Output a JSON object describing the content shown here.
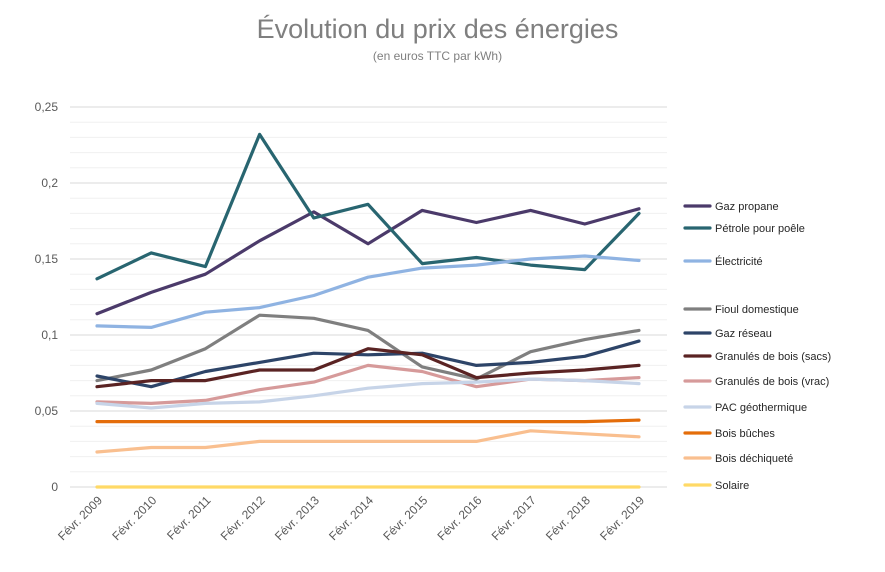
{
  "chart_data": {
    "type": "line",
    "title": "Évolution du prix des énergies",
    "subtitle": "(en euros TTC par kWh)",
    "xlabel": "",
    "ylabel": "",
    "ylim": [
      0,
      0.25
    ],
    "y_ticks": [
      "0",
      "0,05",
      "0,1",
      "0,15",
      "0,2",
      "0,25"
    ],
    "grid": true,
    "legend_position": "right",
    "categories": [
      "Févr. 2009",
      "Févr. 2010",
      "Févr. 2011",
      "Févr. 2012",
      "Févr. 2013",
      "Févr. 2014",
      "Févr. 2015",
      "Févr. 2016",
      "Févr. 2017",
      "Févr. 2018",
      "Févr. 2019"
    ],
    "series": [
      {
        "name": "Gaz propane",
        "color": "#4b3a6a",
        "values": [
          0.114,
          0.128,
          0.14,
          0.162,
          0.181,
          0.16,
          0.182,
          0.174,
          0.182,
          0.173,
          0.183
        ]
      },
      {
        "name": "Pétrole pour poêle",
        "color": "#286570",
        "values": [
          0.137,
          0.154,
          0.145,
          0.232,
          0.177,
          0.186,
          0.147,
          0.151,
          0.146,
          0.143,
          0.18
        ]
      },
      {
        "name": "Électricité",
        "color": "#8fb3e2",
        "values": [
          0.106,
          0.105,
          0.115,
          0.118,
          0.126,
          0.138,
          0.144,
          0.146,
          0.15,
          0.152,
          0.149
        ]
      },
      {
        "name": "Fioul domestique",
        "color": "#7f7f7f",
        "values": [
          0.07,
          0.077,
          0.091,
          0.113,
          0.111,
          0.103,
          0.079,
          0.071,
          0.089,
          0.097,
          0.103
        ]
      },
      {
        "name": "Gaz réseau",
        "color": "#2d4468",
        "values": [
          0.073,
          0.066,
          0.076,
          0.082,
          0.088,
          0.087,
          0.088,
          0.08,
          0.082,
          0.086,
          0.096
        ]
      },
      {
        "name": "Granulés de bois (sacs)",
        "color": "#5a2323",
        "values": [
          0.066,
          0.07,
          0.07,
          0.077,
          0.077,
          0.091,
          0.087,
          0.072,
          0.075,
          0.077,
          0.08
        ]
      },
      {
        "name": "Granulés de bois (vrac)",
        "color": "#d69a9a",
        "values": [
          0.056,
          0.055,
          0.057,
          0.064,
          0.069,
          0.08,
          0.076,
          0.066,
          0.071,
          0.07,
          0.072
        ]
      },
      {
        "name": "PAC géothermique",
        "color": "#c7d4e8",
        "values": [
          0.055,
          0.052,
          0.055,
          0.056,
          0.06,
          0.065,
          0.068,
          0.069,
          0.071,
          0.07,
          0.068
        ]
      },
      {
        "name": "Bois bûches",
        "color": "#e46d0a",
        "values": [
          0.043,
          0.043,
          0.043,
          0.043,
          0.043,
          0.043,
          0.043,
          0.043,
          0.043,
          0.043,
          0.044
        ]
      },
      {
        "name": "Bois déchiqueté",
        "color": "#f9bf8f",
        "values": [
          0.023,
          0.026,
          0.026,
          0.03,
          0.03,
          0.03,
          0.03,
          0.03,
          0.037,
          0.035,
          0.033
        ]
      },
      {
        "name": "Solaire",
        "color": "#ffd966",
        "values": [
          0,
          0,
          0,
          0,
          0,
          0,
          0,
          0,
          0,
          0,
          0
        ]
      }
    ]
  }
}
